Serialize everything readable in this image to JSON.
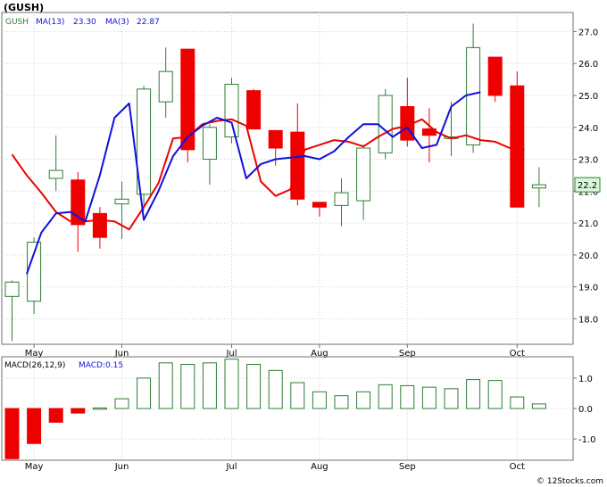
{
  "title": "(GUSH)",
  "footer": "© 12Stocks.com",
  "chart_data": [
    {
      "type": "candlestick",
      "symbol": "GUSH",
      "legend": {
        "symbol": "GUSH",
        "ma13": "MA(13)",
        "ma13_value": "23.30",
        "ma3": "MA(3)",
        "ma3_value": "22.87"
      },
      "colors": {
        "up": "#2e7d32",
        "down": "#ee0000",
        "ma13": "#ee0000",
        "ma3": "#1010dd",
        "last_price": "#2e7d32"
      },
      "last_price_label": "22.2",
      "ylim": [
        17.2,
        27.6
      ],
      "y_ticks": [
        "27.0",
        "26.0",
        "25.0",
        "24.0",
        "23.0",
        "22.0",
        "21.0",
        "20.0",
        "19.0",
        "18.0"
      ],
      "x_ticks": [
        {
          "label": "May",
          "index": 1
        },
        {
          "label": "Jun",
          "index": 5
        },
        {
          "label": "Jul",
          "index": 10
        },
        {
          "label": "Aug",
          "index": 14
        },
        {
          "label": "Sep",
          "index": 18
        },
        {
          "label": "Oct",
          "index": 23
        }
      ],
      "candles": [
        {
          "o": 18.7,
          "h": 19.2,
          "l": 17.3,
          "c": 19.15
        },
        {
          "o": 18.55,
          "h": 20.55,
          "l": 18.15,
          "c": 20.4
        },
        {
          "o": 22.4,
          "h": 23.75,
          "l": 22.0,
          "c": 22.65
        },
        {
          "o": 22.35,
          "h": 22.6,
          "l": 20.1,
          "c": 20.95
        },
        {
          "o": 21.3,
          "h": 21.5,
          "l": 20.2,
          "c": 20.55
        },
        {
          "o": 21.6,
          "h": 22.3,
          "l": 20.5,
          "c": 21.75
        },
        {
          "o": 21.9,
          "h": 25.3,
          "l": 21.4,
          "c": 25.2
        },
        {
          "o": 24.8,
          "h": 26.5,
          "l": 24.3,
          "c": 25.75
        },
        {
          "o": 26.45,
          "h": 26.45,
          "l": 22.9,
          "c": 23.3
        },
        {
          "o": 23.0,
          "h": 24.1,
          "l": 22.2,
          "c": 24.0
        },
        {
          "o": 23.7,
          "h": 25.55,
          "l": 23.5,
          "c": 25.35
        },
        {
          "o": 25.15,
          "h": 25.2,
          "l": 23.95,
          "c": 23.95
        },
        {
          "o": 23.9,
          "h": 23.9,
          "l": 22.8,
          "c": 23.35
        },
        {
          "o": 23.85,
          "h": 24.75,
          "l": 21.55,
          "c": 21.75
        },
        {
          "o": 21.65,
          "h": 21.65,
          "l": 21.2,
          "c": 21.5
        },
        {
          "o": 21.55,
          "h": 22.4,
          "l": 20.9,
          "c": 21.95
        },
        {
          "o": 21.7,
          "h": 23.45,
          "l": 21.1,
          "c": 23.35
        },
        {
          "o": 23.2,
          "h": 25.2,
          "l": 23.0,
          "c": 25.0
        },
        {
          "o": 24.65,
          "h": 25.55,
          "l": 23.4,
          "c": 23.6
        },
        {
          "o": 23.95,
          "h": 24.6,
          "l": 22.9,
          "c": 23.75
        },
        {
          "o": 23.65,
          "h": 24.8,
          "l": 23.1,
          "c": 23.7
        },
        {
          "o": 23.45,
          "h": 27.25,
          "l": 23.2,
          "c": 26.5
        },
        {
          "o": 26.2,
          "h": 26.2,
          "l": 24.8,
          "c": 25.0
        },
        {
          "o": 25.3,
          "h": 25.75,
          "l": 21.5,
          "c": 21.5
        },
        {
          "o": 22.1,
          "h": 22.75,
          "l": 21.5,
          "c": 22.2
        }
      ],
      "ma13_series": [
        {
          "i": 0,
          "v": 23.15
        },
        {
          "i": 1,
          "v": 22.5
        },
        {
          "i": 2,
          "v": 21.95
        },
        {
          "i": 3,
          "v": 21.35
        },
        {
          "i": 4,
          "v": 21.05
        },
        {
          "i": 5,
          "v": 21.05
        },
        {
          "i": 6,
          "v": 21.1
        },
        {
          "i": 7,
          "v": 21.05
        },
        {
          "i": 8,
          "v": 20.8
        },
        {
          "i": 9,
          "v": 21.5
        },
        {
          "i": 10,
          "v": 22.25
        },
        {
          "i": 11,
          "v": 23.65
        },
        {
          "i": 12,
          "v": 23.7
        },
        {
          "i": 13,
          "v": 24.1
        },
        {
          "i": 14,
          "v": 24.2
        },
        {
          "i": 15,
          "v": 24.25
        },
        {
          "i": 16,
          "v": 24.05
        },
        {
          "i": 17,
          "v": 22.3
        },
        {
          "i": 18,
          "v": 21.85
        },
        {
          "i": 19,
          "v": 22.05
        },
        {
          "i": 20,
          "v": 23.3
        },
        {
          "i": 21,
          "v": 23.45
        },
        {
          "i": 22,
          "v": 23.6
        },
        {
          "i": 23,
          "v": 23.55
        },
        {
          "i": 24,
          "v": 23.4
        },
        {
          "i": 25,
          "v": 23.7
        },
        {
          "i": 26,
          "v": 23.95
        },
        {
          "i": 27,
          "v": 24.05
        },
        {
          "i": 28,
          "v": 24.25
        },
        {
          "i": 29,
          "v": 23.85
        },
        {
          "i": 30,
          "v": 23.65
        },
        {
          "i": 31,
          "v": 23.75
        },
        {
          "i": 32,
          "v": 23.6
        },
        {
          "i": 33,
          "v": 23.55
        },
        {
          "i": 34,
          "v": 23.35
        },
        {
          "i": 35,
          "v": 23.3
        }
      ],
      "ma3_series": [
        {
          "i": 1,
          "v": 19.4
        },
        {
          "i": 2,
          "v": 20.7
        },
        {
          "i": 3,
          "v": 21.3
        },
        {
          "i": 4,
          "v": 21.35
        },
        {
          "i": 5,
          "v": 21.05
        },
        {
          "i": 6,
          "v": 22.5
        },
        {
          "i": 7,
          "v": 24.3
        },
        {
          "i": 8,
          "v": 24.75
        },
        {
          "i": 9,
          "v": 21.1
        },
        {
          "i": 10,
          "v": 22.0
        },
        {
          "i": 11,
          "v": 23.1
        },
        {
          "i": 12,
          "v": 23.7
        },
        {
          "i": 13,
          "v": 24.05
        },
        {
          "i": 14,
          "v": 24.3
        },
        {
          "i": 15,
          "v": 24.15
        },
        {
          "i": 16,
          "v": 22.4
        },
        {
          "i": 17,
          "v": 22.85
        },
        {
          "i": 18,
          "v": 23.0
        },
        {
          "i": 19,
          "v": 23.05
        },
        {
          "i": 20,
          "v": 23.1
        },
        {
          "i": 21,
          "v": 23.0
        },
        {
          "i": 22,
          "v": 23.25
        },
        {
          "i": 23,
          "v": 23.7
        },
        {
          "i": 24,
          "v": 24.1
        },
        {
          "i": 25,
          "v": 24.1
        },
        {
          "i": 26,
          "v": 23.7
        },
        {
          "i": 27,
          "v": 24.0
        },
        {
          "i": 28,
          "v": 23.35
        },
        {
          "i": 29,
          "v": 23.45
        },
        {
          "i": 30,
          "v": 24.65
        },
        {
          "i": 31,
          "v": 25.0
        },
        {
          "i": 32,
          "v": 25.1
        }
      ]
    },
    {
      "type": "bar",
      "legend": {
        "macd": "MACD(26,12,9)",
        "macd_value": "MACD:0.15"
      },
      "colors": {
        "positive": "#2e7d32",
        "negative": "#ee0000"
      },
      "ylim": [
        -1.7,
        1.7
      ],
      "y_ticks": [
        "1.0",
        "0.0",
        "-1.0"
      ],
      "x_ticks": [
        "May",
        "Jun",
        "Jul",
        "Aug",
        "Sep",
        "Oct"
      ],
      "values": [
        -1.65,
        -1.15,
        -0.45,
        -0.15,
        0.02,
        0.32,
        1.0,
        1.5,
        1.45,
        1.5,
        1.62,
        1.45,
        1.25,
        0.85,
        0.55,
        0.42,
        0.55,
        0.78,
        0.75,
        0.7,
        0.65,
        0.95,
        0.92,
        0.38,
        0.15
      ]
    }
  ]
}
